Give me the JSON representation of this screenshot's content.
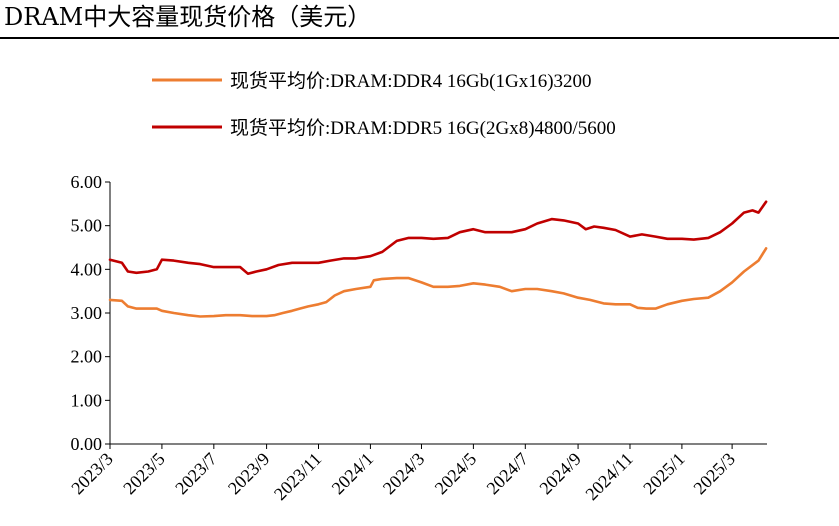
{
  "chart_data": {
    "type": "line",
    "title": "DRAM中大容量现货价格（美元）",
    "xlabel": "",
    "ylabel": "",
    "ylim": [
      0,
      6
    ],
    "y_ticks": [
      "0.00",
      "1.00",
      "2.00",
      "3.00",
      "4.00",
      "5.00",
      "6.00"
    ],
    "x_tick_labels": [
      "2023/3",
      "2023/5",
      "2023/7",
      "2023/9",
      "2023/11",
      "2024/1",
      "2024/3",
      "2024/5",
      "2024/7",
      "2024/9",
      "2024/11",
      "2025/1",
      "2025/3"
    ],
    "grid": false,
    "legend_position": "top",
    "series": [
      {
        "name": "现货平均价:DRAM:DDR4 16Gb(1Gx16)3200",
        "color": "#ED7D31",
        "points": [
          [
            "2023-03-01",
            3.3
          ],
          [
            "2023-03-15",
            3.28
          ],
          [
            "2023-03-22",
            3.15
          ],
          [
            "2023-04-01",
            3.1
          ],
          [
            "2023-04-15",
            3.1
          ],
          [
            "2023-04-25",
            3.1
          ],
          [
            "2023-05-01",
            3.05
          ],
          [
            "2023-05-15",
            3.0
          ],
          [
            "2023-06-01",
            2.95
          ],
          [
            "2023-06-15",
            2.92
          ],
          [
            "2023-07-01",
            2.93
          ],
          [
            "2023-07-15",
            2.95
          ],
          [
            "2023-08-01",
            2.95
          ],
          [
            "2023-08-15",
            2.93
          ],
          [
            "2023-09-01",
            2.93
          ],
          [
            "2023-09-10",
            2.95
          ],
          [
            "2023-09-20",
            3.0
          ],
          [
            "2023-10-01",
            3.05
          ],
          [
            "2023-10-10",
            3.1
          ],
          [
            "2023-10-20",
            3.15
          ],
          [
            "2023-11-01",
            3.2
          ],
          [
            "2023-11-10",
            3.25
          ],
          [
            "2023-11-20",
            3.4
          ],
          [
            "2023-12-01",
            3.5
          ],
          [
            "2023-12-15",
            3.55
          ],
          [
            "2024-01-01",
            3.6
          ],
          [
            "2024-01-05",
            3.75
          ],
          [
            "2024-01-15",
            3.78
          ],
          [
            "2024-02-01",
            3.8
          ],
          [
            "2024-02-15",
            3.8
          ],
          [
            "2024-03-01",
            3.7
          ],
          [
            "2024-03-15",
            3.6
          ],
          [
            "2024-04-01",
            3.6
          ],
          [
            "2024-04-15",
            3.62
          ],
          [
            "2024-05-01",
            3.68
          ],
          [
            "2024-05-15",
            3.65
          ],
          [
            "2024-06-01",
            3.6
          ],
          [
            "2024-06-15",
            3.5
          ],
          [
            "2024-07-01",
            3.55
          ],
          [
            "2024-07-15",
            3.55
          ],
          [
            "2024-08-01",
            3.5
          ],
          [
            "2024-08-15",
            3.45
          ],
          [
            "2024-09-01",
            3.35
          ],
          [
            "2024-09-15",
            3.3
          ],
          [
            "2024-10-01",
            3.22
          ],
          [
            "2024-10-15",
            3.2
          ],
          [
            "2024-11-01",
            3.2
          ],
          [
            "2024-11-10",
            3.12
          ],
          [
            "2024-11-20",
            3.1
          ],
          [
            "2024-12-01",
            3.1
          ],
          [
            "2024-12-15",
            3.2
          ],
          [
            "2025-01-01",
            3.28
          ],
          [
            "2025-01-15",
            3.32
          ],
          [
            "2025-02-01",
            3.35
          ],
          [
            "2025-02-15",
            3.5
          ],
          [
            "2025-03-01",
            3.7
          ],
          [
            "2025-03-15",
            3.95
          ],
          [
            "2025-04-01",
            4.2
          ],
          [
            "2025-04-10",
            4.48
          ]
        ]
      },
      {
        "name": "现货平均价:DRAM:DDR5 16G(2Gx8)4800/5600",
        "color": "#C00000",
        "points": [
          [
            "2023-03-01",
            4.22
          ],
          [
            "2023-03-15",
            4.15
          ],
          [
            "2023-03-22",
            3.95
          ],
          [
            "2023-04-01",
            3.92
          ],
          [
            "2023-04-15",
            3.95
          ],
          [
            "2023-04-25",
            4.0
          ],
          [
            "2023-05-01",
            4.22
          ],
          [
            "2023-05-15",
            4.2
          ],
          [
            "2023-06-01",
            4.15
          ],
          [
            "2023-06-15",
            4.12
          ],
          [
            "2023-07-01",
            4.05
          ],
          [
            "2023-07-15",
            4.05
          ],
          [
            "2023-08-01",
            4.05
          ],
          [
            "2023-08-10",
            3.9
          ],
          [
            "2023-08-20",
            3.95
          ],
          [
            "2023-09-01",
            4.0
          ],
          [
            "2023-09-15",
            4.1
          ],
          [
            "2023-10-01",
            4.15
          ],
          [
            "2023-10-15",
            4.15
          ],
          [
            "2023-11-01",
            4.15
          ],
          [
            "2023-11-15",
            4.2
          ],
          [
            "2023-12-01",
            4.25
          ],
          [
            "2023-12-15",
            4.25
          ],
          [
            "2024-01-01",
            4.3
          ],
          [
            "2024-01-15",
            4.4
          ],
          [
            "2024-02-01",
            4.65
          ],
          [
            "2024-02-15",
            4.72
          ],
          [
            "2024-03-01",
            4.72
          ],
          [
            "2024-03-15",
            4.7
          ],
          [
            "2024-04-01",
            4.72
          ],
          [
            "2024-04-15",
            4.85
          ],
          [
            "2024-05-01",
            4.92
          ],
          [
            "2024-05-15",
            4.85
          ],
          [
            "2024-06-01",
            4.85
          ],
          [
            "2024-06-15",
            4.85
          ],
          [
            "2024-07-01",
            4.92
          ],
          [
            "2024-07-15",
            5.05
          ],
          [
            "2024-08-01",
            5.15
          ],
          [
            "2024-08-15",
            5.12
          ],
          [
            "2024-09-01",
            5.05
          ],
          [
            "2024-09-10",
            4.92
          ],
          [
            "2024-09-20",
            4.98
          ],
          [
            "2024-10-01",
            4.95
          ],
          [
            "2024-10-15",
            4.9
          ],
          [
            "2024-11-01",
            4.75
          ],
          [
            "2024-11-15",
            4.8
          ],
          [
            "2024-12-01",
            4.75
          ],
          [
            "2024-12-15",
            4.7
          ],
          [
            "2025-01-01",
            4.7
          ],
          [
            "2025-01-15",
            4.68
          ],
          [
            "2025-02-01",
            4.72
          ],
          [
            "2025-02-15",
            4.85
          ],
          [
            "2025-03-01",
            5.05
          ],
          [
            "2025-03-15",
            5.3
          ],
          [
            "2025-03-25",
            5.35
          ],
          [
            "2025-04-01",
            5.3
          ],
          [
            "2025-04-10",
            5.55
          ]
        ]
      }
    ]
  }
}
